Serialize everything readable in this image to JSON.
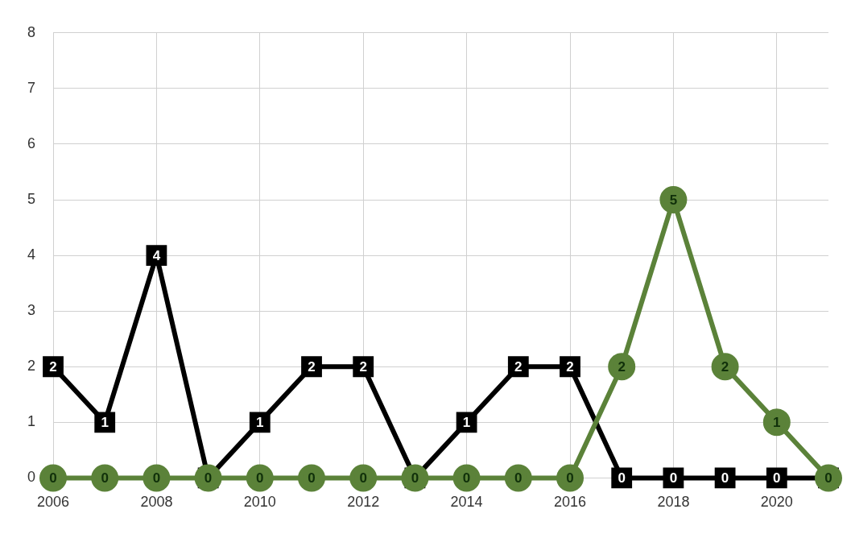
{
  "chart_data": {
    "type": "line",
    "categories": [
      "2006",
      null,
      "2008",
      null,
      "2010",
      null,
      "2012",
      null,
      "2014",
      null,
      "2016",
      null,
      "2018",
      null,
      "2020",
      null
    ],
    "series": [
      {
        "color": "#5b8239",
        "marker": "circle",
        "values": [
          0,
          0,
          0,
          0,
          0,
          0,
          0,
          0,
          0,
          0,
          0,
          2,
          5,
          2,
          1,
          0
        ],
        "value_labels": [
          "0",
          "0",
          "0",
          "0",
          "0",
          "0",
          "0",
          "0",
          "0",
          "0",
          "0",
          "2",
          "5",
          "2",
          "1",
          "0"
        ]
      },
      {
        "color": "#000000",
        "marker": "square",
        "values": [
          2,
          1,
          4,
          0,
          1,
          2,
          2,
          0,
          1,
          2,
          2,
          0,
          0,
          0,
          0,
          0
        ],
        "value_labels": [
          "2",
          "1",
          "4",
          null,
          "1",
          "2",
          "2",
          null,
          "1",
          "2",
          "2",
          "0",
          "0",
          "0",
          "0",
          null
        ]
      }
    ],
    "ylim": [
      0,
      8
    ],
    "yticks": [
      0,
      1,
      2,
      3,
      4,
      5,
      6,
      7,
      8
    ],
    "grid": true,
    "legend": false
  }
}
